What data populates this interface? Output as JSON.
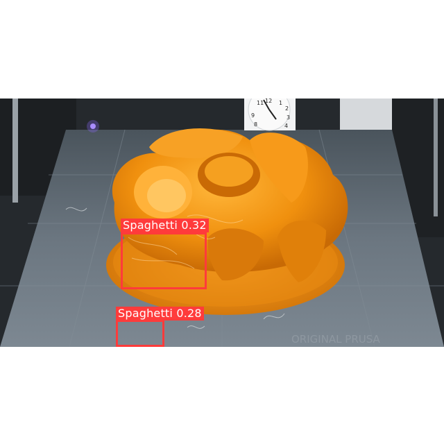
{
  "image": {
    "subject": "3D printed object on printer bed",
    "colors": {
      "background": "#ffffff",
      "print_orange": "#f59a16",
      "bed_gray": "#5f6a73",
      "detection": "#ff3b3b"
    }
  },
  "detections": [
    {
      "label": "Spaghetti 0.32",
      "class": "Spaghetti",
      "confidence": 0.32
    },
    {
      "label": "Spaghetti 0.28",
      "class": "Spaghetti",
      "confidence": 0.28
    }
  ],
  "clock": {
    "numerals": [
      "11",
      "12",
      "1",
      "2",
      "9",
      "3",
      "8",
      "4"
    ]
  },
  "watermark": "ORIGINAL PRUSA"
}
